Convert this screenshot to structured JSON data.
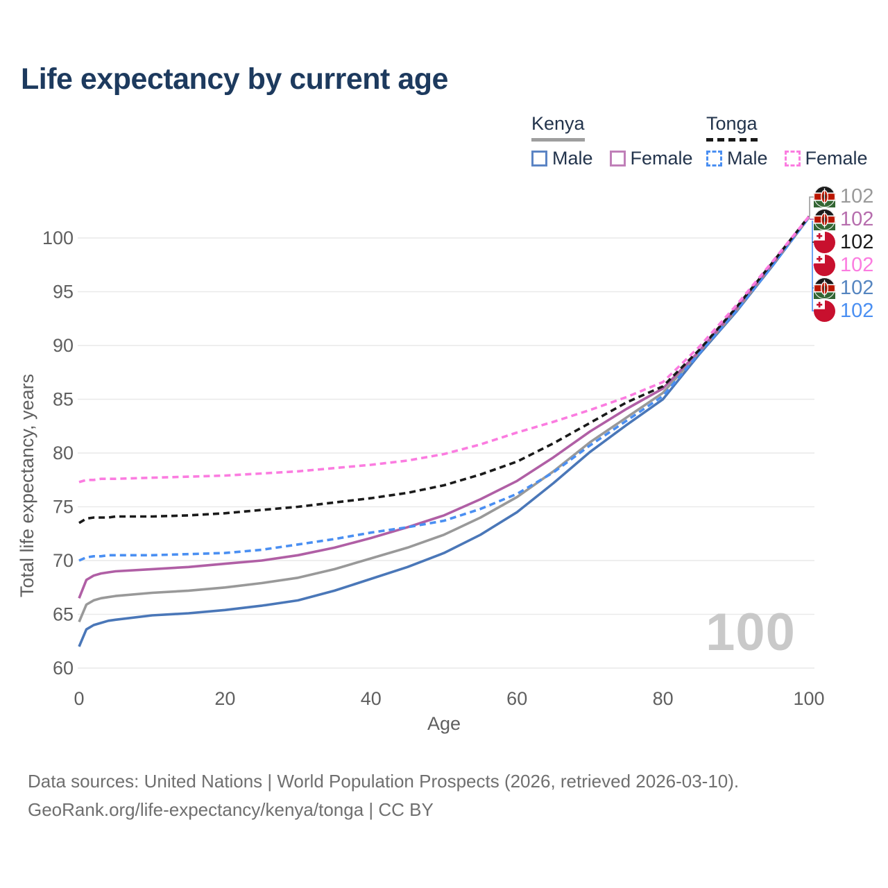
{
  "title": "Life expectancy by current age",
  "legend": {
    "groups": [
      {
        "label": "Kenya",
        "line_style": "solid",
        "underline_color": "#9e9e9e",
        "items": [
          {
            "label": "Male",
            "color": "#5b84c4",
            "dash": false
          },
          {
            "label": "Female",
            "color": "#c07fb8",
            "dash": false
          }
        ]
      },
      {
        "label": "Tonga",
        "line_style": "dashed",
        "underline_color": "#1a1a1a",
        "items": [
          {
            "label": "Male",
            "color": "#4a8ff2",
            "dash": true
          },
          {
            "label": "Female",
            "color": "#fb7ce0",
            "dash": true
          }
        ]
      }
    ]
  },
  "chart_data": {
    "type": "line",
    "title": "Life expectancy by current age",
    "xlabel": "Age",
    "ylabel": "Total life expectancy, years",
    "xlim": [
      0,
      100
    ],
    "ylim": [
      60,
      102.5
    ],
    "xticks": [
      0,
      20,
      40,
      60,
      80,
      100
    ],
    "yticks": [
      60,
      65,
      70,
      75,
      80,
      85,
      90,
      95,
      100
    ],
    "grid": true,
    "legend_position": "top-right",
    "x": [
      0,
      1,
      2,
      3,
      4,
      5,
      10,
      15,
      20,
      25,
      30,
      35,
      40,
      45,
      50,
      55,
      60,
      65,
      70,
      75,
      80,
      85,
      90,
      95,
      100
    ],
    "series": [
      {
        "name": "Kenya Male",
        "country": "Kenya",
        "sex": "Male",
        "color": "#4a77b8",
        "dash": false,
        "values": [
          62.0,
          63.6,
          64.0,
          64.2,
          64.4,
          64.5,
          64.9,
          65.1,
          65.4,
          65.8,
          66.3,
          67.2,
          68.3,
          69.4,
          70.7,
          72.4,
          74.5,
          77.2,
          80.1,
          82.6,
          85.0,
          89.2,
          93.1,
          97.4,
          101.9
        ]
      },
      {
        "name": "Kenya Both sexes",
        "country": "Kenya",
        "sex": "Both",
        "color": "#999999",
        "dash": false,
        "values": [
          64.3,
          65.9,
          66.3,
          66.5,
          66.6,
          66.7,
          67.0,
          67.2,
          67.5,
          67.9,
          68.4,
          69.2,
          70.2,
          71.2,
          72.4,
          74.0,
          75.9,
          78.3,
          81.0,
          83.3,
          85.6,
          89.4,
          93.2,
          97.5,
          101.9
        ]
      },
      {
        "name": "Kenya Female",
        "country": "Kenya",
        "sex": "Female",
        "color": "#b05fa5",
        "dash": false,
        "values": [
          66.5,
          68.2,
          68.6,
          68.8,
          68.9,
          69.0,
          69.2,
          69.4,
          69.7,
          70.0,
          70.5,
          71.2,
          72.1,
          73.1,
          74.2,
          75.7,
          77.4,
          79.6,
          82.0,
          84.1,
          86.0,
          89.5,
          93.4,
          97.6,
          102.0
        ]
      },
      {
        "name": "Tonga Male",
        "country": "Tonga",
        "sex": "Male",
        "color": "#4a8ff2",
        "dash": true,
        "values": [
          70.0,
          70.3,
          70.4,
          70.4,
          70.5,
          70.5,
          70.5,
          70.6,
          70.7,
          71.0,
          71.5,
          72.0,
          72.6,
          73.1,
          73.7,
          74.8,
          76.2,
          78.2,
          80.7,
          83.0,
          85.3,
          89.3,
          93.2,
          97.4,
          101.9
        ]
      },
      {
        "name": "Tonga Both sexes",
        "country": "Tonga",
        "sex": "Both",
        "color": "#1a1a1a",
        "dash": true,
        "values": [
          73.5,
          73.9,
          74.0,
          74.0,
          74.0,
          74.1,
          74.1,
          74.2,
          74.4,
          74.7,
          75.0,
          75.4,
          75.8,
          76.3,
          77.0,
          78.0,
          79.2,
          80.9,
          82.8,
          84.7,
          86.2,
          89.6,
          93.5,
          97.7,
          102.0
        ]
      },
      {
        "name": "Tonga Female",
        "country": "Tonga",
        "sex": "Female",
        "color": "#fb7ce0",
        "dash": true,
        "values": [
          77.3,
          77.5,
          77.5,
          77.6,
          77.6,
          77.6,
          77.7,
          77.8,
          77.9,
          78.1,
          78.3,
          78.6,
          78.9,
          79.3,
          79.9,
          80.8,
          81.9,
          82.9,
          84.0,
          85.2,
          86.6,
          89.9,
          93.7,
          97.8,
          102.0
        ]
      }
    ],
    "end_value_at_age_100": 102
  },
  "end_labels": [
    {
      "flag": "kenya",
      "value": "102",
      "color": "#999999"
    },
    {
      "flag": "kenya",
      "value": "102",
      "color": "#b66dad"
    },
    {
      "flag": "tonga",
      "value": "102",
      "color": "#1a1a1a"
    },
    {
      "flag": "tonga",
      "value": "102",
      "color": "#fb7ce0"
    },
    {
      "flag": "kenya",
      "value": "102",
      "color": "#5585c0"
    },
    {
      "flag": "tonga",
      "value": "102",
      "color": "#4a8ff2"
    }
  ],
  "age_counter": "100",
  "footer": {
    "line1": "Data sources: United Nations | World Population Prospects (2026, retrieved 2026-03-10).",
    "line2": "GeoRank.org/life-expectancy/kenya/tonga | CC BY"
  }
}
